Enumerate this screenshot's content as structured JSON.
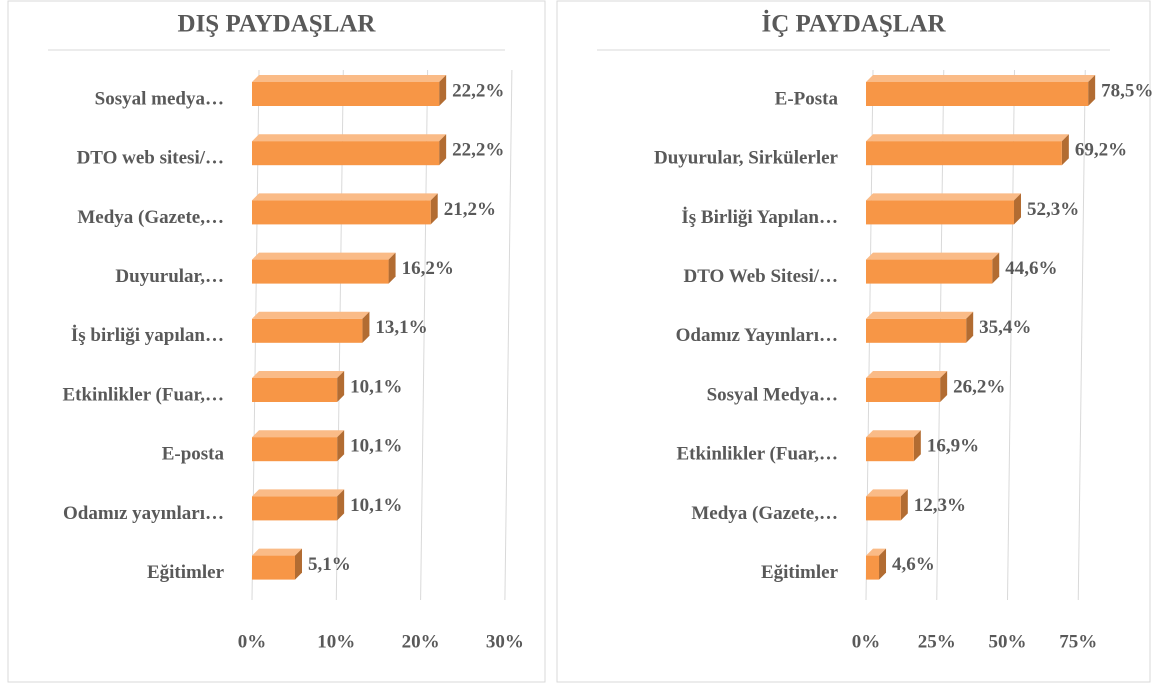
{
  "chart_data": [
    {
      "type": "hbar",
      "title": "DIŞ PAYDAŞLAR",
      "categories": [
        "Sosyal medya…",
        "DTO web sitesi/…",
        "Medya (Gazete,…",
        "Duyurular,…",
        "İş birliği yapılan…",
        "Etkinlikler (Fuar,…",
        "E-posta",
        "Odamız yayınları…",
        "Eğitimler"
      ],
      "values": [
        22.2,
        22.2,
        21.2,
        16.2,
        13.1,
        10.1,
        10.1,
        10.1,
        5.1
      ],
      "value_labels": [
        "22,2%",
        "22,2%",
        "21,2%",
        "16,2%",
        "13,1%",
        "10,1%",
        "10,1%",
        "10,1%",
        "5,1%"
      ],
      "color": "#f79646",
      "xlim": [
        0,
        30
      ],
      "xticks": [
        {
          "value": 0,
          "label": "0%"
        },
        {
          "value": 10,
          "label": "10%"
        },
        {
          "value": 20,
          "label": "20%"
        },
        {
          "value": 30,
          "label": "30%"
        }
      ],
      "grid": true
    },
    {
      "type": "hbar",
      "title": "İÇ PAYDAŞLAR",
      "categories": [
        "E-Posta",
        "Duyurular, Sirkülerler",
        "İş Birliği Yapılan…",
        "DTO Web Sitesi/…",
        "Odamız Yayınları…",
        "Sosyal Medya…",
        "Etkinlikler (Fuar,…",
        "Medya (Gazete,…",
        "Eğitimler"
      ],
      "values": [
        78.5,
        69.2,
        52.3,
        44.6,
        35.4,
        26.2,
        16.9,
        12.3,
        4.6
      ],
      "value_labels": [
        "78,5%",
        "69,2%",
        "52,3%",
        "44,6%",
        "35,4%",
        "26,2%",
        "16,9%",
        "12,3%",
        "4,6%"
      ],
      "color": "#f79646",
      "xlim": [
        0,
        80
      ],
      "xticks": [
        {
          "value": 0,
          "label": "0%"
        },
        {
          "value": 25,
          "label": "25%"
        },
        {
          "value": 50,
          "label": "50%"
        },
        {
          "value": 75,
          "label": "75%"
        }
      ],
      "grid": true
    }
  ]
}
